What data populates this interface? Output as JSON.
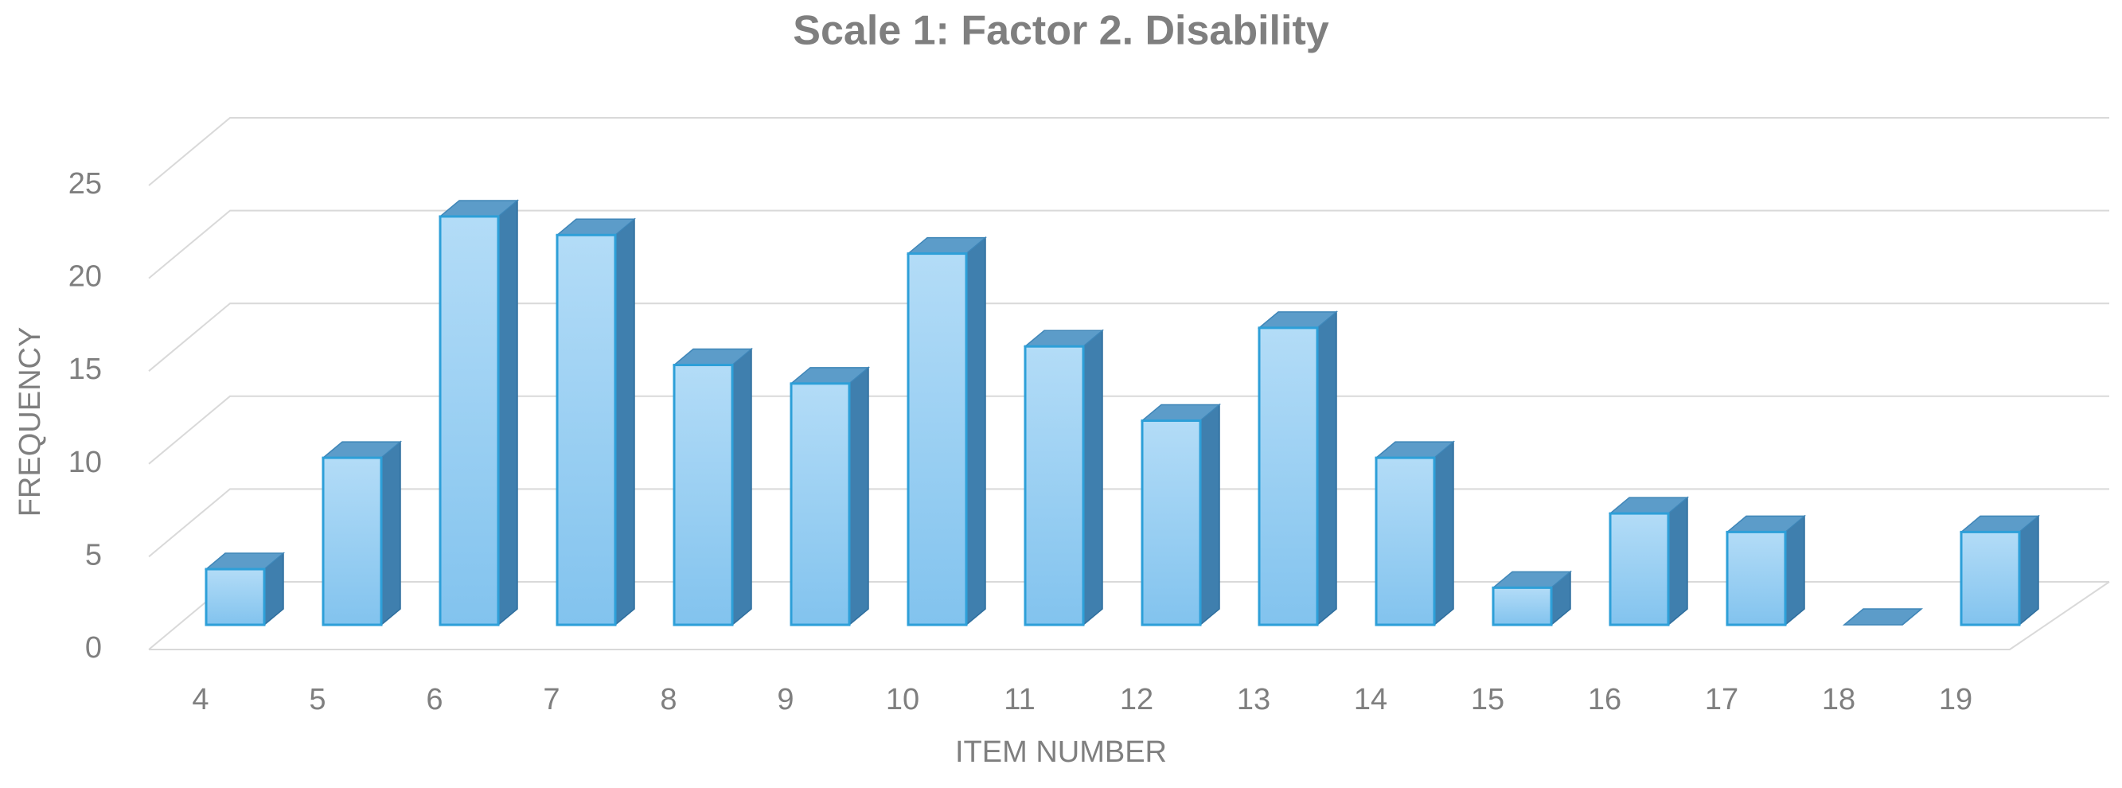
{
  "chart_data": {
    "type": "bar",
    "title": "Scale 1: Factor 2. Disability",
    "x_label": "ITEM NUMBER",
    "y_label": "FREQUENCY",
    "categories": [
      "4",
      "5",
      "6",
      "7",
      "8",
      "9",
      "10",
      "11",
      "12",
      "13",
      "14",
      "15",
      "16",
      "17",
      "18",
      "19"
    ],
    "values": [
      3,
      9,
      22,
      21,
      14,
      13,
      20,
      15,
      11,
      16,
      9,
      2,
      6,
      5,
      0,
      5
    ],
    "color": "#8ecbf1",
    "ylim": [
      0,
      25
    ],
    "yticks": [
      0,
      5,
      10,
      15,
      20,
      25
    ],
    "grid": true
  }
}
